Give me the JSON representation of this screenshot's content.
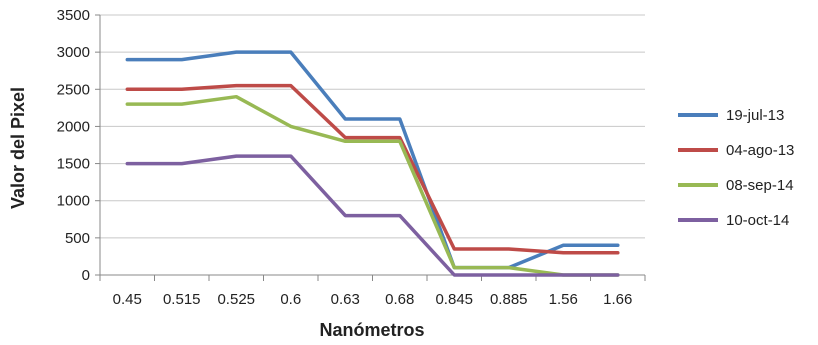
{
  "chart_data": {
    "type": "line",
    "xlabel": "Nanómetros",
    "ylabel": "Valor del Pixel",
    "categories": [
      "0.45",
      "0.515",
      "0.525",
      "0.6",
      "0.63",
      "0.68",
      "0.845",
      "0.885",
      "1.56",
      "1.66"
    ],
    "ylim": [
      0,
      3500
    ],
    "yticks": [
      "0",
      "500",
      "1000",
      "1500",
      "2000",
      "2500",
      "3000",
      "3500"
    ],
    "grid": true,
    "legend_position": "right",
    "series": [
      {
        "name": "19-jul-13",
        "color": "#4A7EBB",
        "values": [
          2900,
          2900,
          3000,
          3000,
          2100,
          2100,
          100,
          100,
          400,
          400
        ]
      },
      {
        "name": "04-ago-13",
        "color": "#BE4B48",
        "values": [
          2500,
          2500,
          2550,
          2550,
          1850,
          1850,
          350,
          350,
          300,
          300
        ]
      },
      {
        "name": "08-sep-14",
        "color": "#98B954",
        "values": [
          2300,
          2300,
          2400,
          2000,
          1800,
          1800,
          100,
          100,
          0,
          0
        ]
      },
      {
        "name": "10-oct-14",
        "color": "#7D60A0",
        "values": [
          1500,
          1500,
          1600,
          1600,
          800,
          800,
          0,
          0,
          0,
          0
        ]
      }
    ]
  }
}
